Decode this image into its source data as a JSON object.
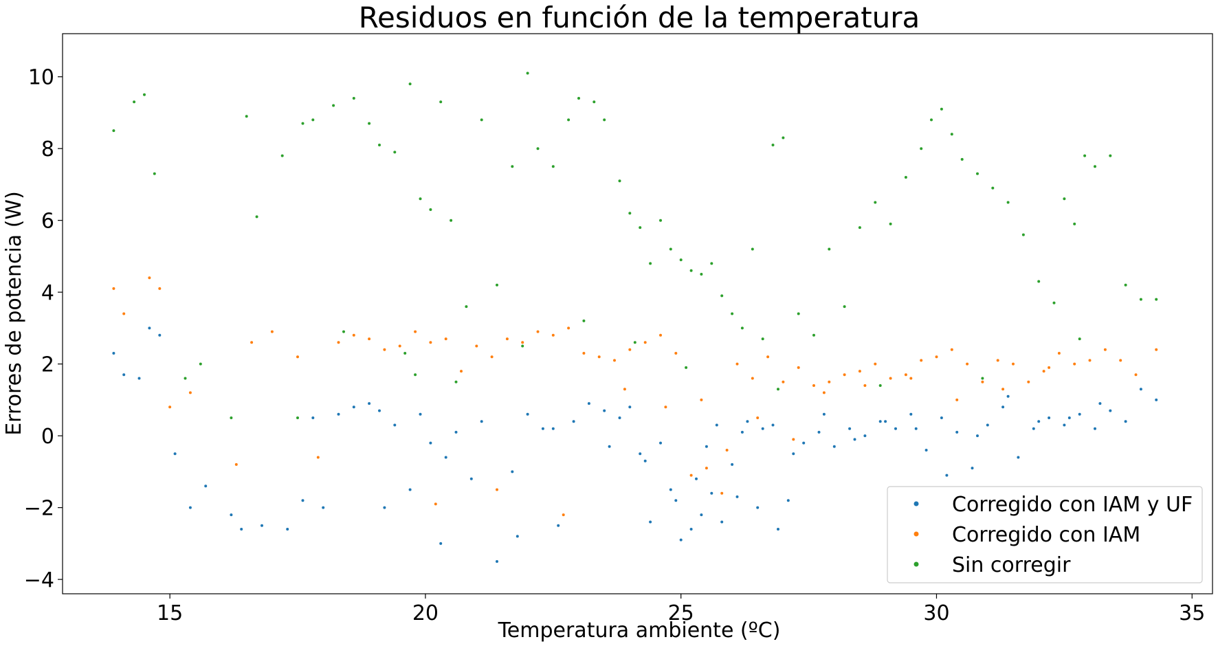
{
  "chart_data": {
    "type": "scatter",
    "title": "Residuos en función de la temperatura",
    "xlabel": "Temperatura ambiente (ºC)",
    "ylabel": "Errores de potencia (W)",
    "xlim": [
      12.9,
      35.4
    ],
    "ylim": [
      -4.4,
      11.2
    ],
    "xticks": [
      15,
      20,
      25,
      30,
      35
    ],
    "yticks": [
      -4,
      -2,
      0,
      2,
      4,
      6,
      8,
      10
    ],
    "ytick_labels": [
      "−4",
      "−2",
      "0",
      "2",
      "4",
      "6",
      "8",
      "10"
    ],
    "grid": false,
    "legend_position": "bottom-right",
    "series": [
      {
        "name": "Corregido con IAM y UF",
        "color": "#1f77b4",
        "x": [
          13.9,
          14.1,
          14.4,
          14.6,
          14.8,
          15.1,
          15.4,
          15.7,
          16.2,
          16.4,
          16.8,
          17.3,
          17.6,
          17.8,
          18.0,
          18.3,
          18.6,
          18.9,
          19.1,
          19.4,
          19.7,
          19.9,
          20.1,
          20.3,
          20.6,
          20.9,
          21.1,
          21.4,
          21.7,
          22.0,
          22.3,
          22.6,
          22.9,
          23.2,
          23.5,
          23.8,
          24.0,
          24.2,
          24.4,
          24.6,
          24.8,
          25.0,
          25.2,
          25.4,
          25.6,
          25.8,
          26.0,
          26.2,
          26.5,
          26.8,
          27.1,
          27.4,
          27.7,
          28.0,
          28.3,
          28.6,
          28.9,
          29.2,
          29.5,
          29.8,
          30.1,
          30.4,
          30.7,
          31.0,
          31.3,
          31.6,
          31.9,
          32.2,
          32.5,
          32.8,
          33.1,
          33.4,
          33.7,
          34.0,
          34.3,
          25.3,
          25.7,
          26.1,
          26.6,
          27.2,
          27.8,
          28.4,
          29.0,
          29.6,
          30.2,
          30.8,
          31.4,
          32.0,
          32.6,
          33.2,
          19.2,
          20.4,
          21.8,
          22.5,
          23.6,
          24.3,
          24.9,
          25.5,
          26.3,
          26.9
        ],
        "y": [
          2.3,
          1.7,
          1.6,
          3.0,
          2.8,
          -0.5,
          -2.0,
          -1.4,
          -2.2,
          -2.6,
          -2.5,
          -2.6,
          -1.8,
          0.5,
          -2.0,
          0.6,
          0.8,
          0.9,
          0.7,
          0.3,
          -1.5,
          0.6,
          -0.2,
          -3.0,
          0.1,
          -1.2,
          0.4,
          -3.5,
          -1.0,
          0.6,
          0.2,
          -2.5,
          0.4,
          0.9,
          0.7,
          0.5,
          0.8,
          -0.5,
          -2.4,
          -0.2,
          -1.5,
          -2.9,
          -2.6,
          -2.2,
          -1.6,
          -2.4,
          -0.8,
          0.1,
          -2.0,
          0.3,
          -1.8,
          -0.2,
          0.1,
          -0.3,
          0.2,
          0.0,
          0.4,
          0.2,
          0.6,
          -0.4,
          0.5,
          0.1,
          -0.9,
          0.3,
          0.8,
          -0.6,
          0.2,
          0.5,
          0.3,
          0.6,
          0.2,
          0.7,
          0.4,
          1.3,
          1.0,
          -1.2,
          0.3,
          -1.7,
          0.2,
          -0.5,
          0.6,
          -0.1,
          0.4,
          0.2,
          -1.1,
          0.0,
          1.1,
          0.4,
          0.5,
          0.9,
          -2.0,
          -0.6,
          -2.8,
          0.2,
          -0.3,
          -0.7,
          -1.8,
          -0.3,
          0.4,
          -2.6
        ]
      },
      {
        "name": "Corregido con IAM",
        "color": "#ff7f0e",
        "x": [
          13.9,
          14.1,
          14.6,
          14.8,
          15.0,
          15.4,
          16.3,
          16.6,
          17.0,
          17.5,
          17.9,
          18.3,
          18.6,
          18.9,
          19.2,
          19.5,
          19.8,
          20.1,
          20.4,
          20.7,
          21.0,
          21.3,
          21.6,
          21.9,
          22.2,
          22.5,
          22.8,
          23.1,
          23.4,
          23.7,
          24.0,
          24.3,
          24.6,
          24.9,
          25.2,
          25.5,
          25.8,
          26.1,
          26.4,
          26.7,
          27.0,
          27.3,
          27.6,
          27.9,
          28.2,
          28.5,
          28.8,
          29.1,
          29.4,
          29.7,
          30.0,
          30.3,
          30.6,
          30.9,
          31.2,
          31.5,
          31.8,
          32.1,
          32.4,
          32.7,
          33.0,
          33.3,
          33.6,
          33.9,
          34.3,
          25.4,
          25.9,
          26.5,
          27.2,
          27.8,
          28.6,
          29.5,
          30.4,
          31.3,
          32.2,
          20.2,
          21.4,
          22.7,
          23.9,
          24.7
        ],
        "y": [
          4.1,
          3.4,
          4.4,
          4.1,
          0.8,
          1.2,
          -0.8,
          2.6,
          2.9,
          2.2,
          -0.6,
          2.6,
          2.8,
          2.7,
          2.4,
          2.5,
          2.9,
          2.6,
          2.7,
          1.8,
          2.5,
          2.2,
          2.7,
          2.6,
          2.9,
          2.8,
          3.0,
          2.3,
          2.2,
          2.1,
          2.4,
          2.6,
          2.8,
          2.3,
          -1.1,
          -0.9,
          -1.6,
          2.0,
          1.6,
          2.2,
          1.5,
          1.9,
          1.4,
          1.5,
          1.7,
          1.8,
          2.0,
          1.6,
          1.7,
          2.1,
          2.2,
          2.4,
          2.0,
          1.5,
          2.1,
          2.0,
          1.5,
          1.8,
          2.3,
          2.0,
          2.1,
          2.4,
          2.1,
          1.7,
          2.4,
          1.0,
          -0.4,
          0.5,
          -0.1,
          1.2,
          1.4,
          1.6,
          1.0,
          1.3,
          1.9,
          -1.9,
          -1.5,
          -2.2,
          1.3,
          0.8
        ]
      },
      {
        "name": "Sin corregir",
        "color": "#2ca02c",
        "x": [
          13.9,
          14.3,
          14.5,
          14.7,
          15.3,
          15.6,
          16.2,
          16.5,
          16.7,
          17.2,
          17.6,
          17.8,
          18.2,
          18.6,
          18.9,
          19.1,
          19.4,
          19.7,
          19.9,
          20.1,
          20.3,
          20.5,
          20.8,
          21.1,
          21.4,
          21.7,
          22.0,
          22.2,
          22.5,
          22.8,
          23.0,
          23.3,
          23.5,
          23.8,
          24.0,
          24.2,
          24.4,
          24.6,
          24.8,
          25.0,
          25.2,
          25.4,
          25.6,
          25.8,
          26.0,
          26.2,
          26.4,
          26.6,
          26.8,
          27.0,
          27.3,
          27.6,
          27.9,
          28.2,
          28.5,
          28.8,
          29.1,
          29.4,
          29.7,
          29.9,
          30.1,
          30.3,
          30.5,
          30.8,
          31.1,
          31.4,
          31.7,
          32.0,
          32.3,
          32.5,
          32.7,
          32.9,
          33.1,
          33.4,
          33.7,
          34.0,
          34.3,
          18.4,
          19.6,
          20.6,
          21.9,
          23.1,
          24.1,
          25.1,
          26.9,
          28.9,
          30.9,
          32.8,
          17.5,
          19.8
        ],
        "y": [
          8.5,
          9.3,
          9.5,
          7.3,
          1.6,
          2.0,
          0.5,
          8.9,
          6.1,
          7.8,
          8.7,
          8.8,
          9.2,
          9.4,
          8.7,
          8.1,
          7.9,
          9.8,
          6.6,
          6.3,
          9.3,
          6.0,
          3.6,
          8.8,
          4.2,
          7.5,
          10.1,
          8.0,
          7.5,
          8.8,
          9.4,
          9.3,
          8.8,
          7.1,
          6.2,
          5.8,
          4.8,
          6.0,
          5.2,
          4.9,
          4.6,
          4.5,
          4.8,
          3.9,
          3.4,
          3.0,
          5.2,
          2.7,
          8.1,
          8.3,
          3.4,
          2.8,
          5.2,
          3.6,
          5.8,
          6.5,
          5.9,
          7.2,
          8.0,
          8.8,
          9.1,
          8.4,
          7.7,
          7.3,
          6.9,
          6.5,
          5.6,
          4.3,
          3.7,
          6.6,
          5.9,
          7.8,
          7.5,
          7.8,
          4.2,
          3.8,
          3.8,
          2.9,
          2.3,
          1.5,
          2.5,
          3.2,
          2.6,
          1.9,
          1.3,
          1.4,
          1.6,
          2.7,
          0.5,
          1.7
        ]
      }
    ]
  }
}
